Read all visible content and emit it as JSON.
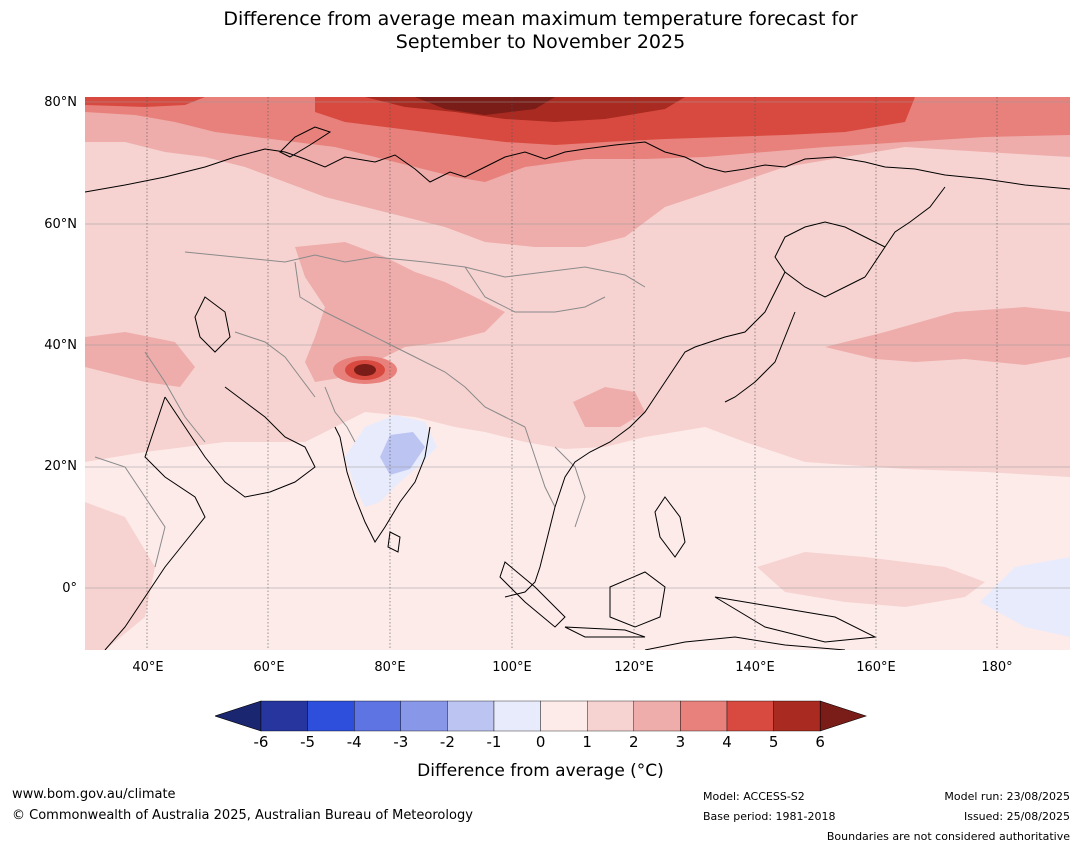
{
  "title": {
    "line1": "Difference from average mean maximum temperature forecast for",
    "line2": "September to November 2025"
  },
  "map": {
    "lat_labels": [
      "80°N",
      "60°N",
      "40°N",
      "20°N",
      "0°"
    ],
    "lon_labels": [
      "40°E",
      "60°E",
      "80°E",
      "100°E",
      "120°E",
      "140°E",
      "160°E",
      "180°"
    ],
    "lon_range": [
      30,
      192
    ],
    "lat_range": [
      -10,
      81
    ],
    "land_outline_color": "#000000",
    "border_color": "#888888"
  },
  "colorbar": {
    "ticks": [
      "-6",
      "-5",
      "-4",
      "-3",
      "-2",
      "-1",
      "0",
      "1",
      "2",
      "3",
      "4",
      "5",
      "6"
    ],
    "colors": [
      "#27369e",
      "#2e4fdb",
      "#5e74e3",
      "#8997e8",
      "#bcc4f2",
      "#e8ebfb",
      "#fdebea",
      "#f6d3d1",
      "#eeadab",
      "#e8817c",
      "#d84a3f",
      "#a82a20"
    ],
    "extend_low_color": "#1a2670",
    "extend_high_color": "#7a1c17",
    "label": "Difference from average (°C)"
  },
  "footer": {
    "url": "www.bom.gov.au/climate",
    "copyright": "© Commonwealth of Australia 2025, Australian Bureau of Meteorology",
    "model": "Model: ACCESS-S2",
    "base_period": "Base period: 1981-2018",
    "model_run": "Model run: 23/08/2025",
    "issued": "Issued: 25/08/2025",
    "disclaimer": "Boundaries are not considered authoritative"
  }
}
